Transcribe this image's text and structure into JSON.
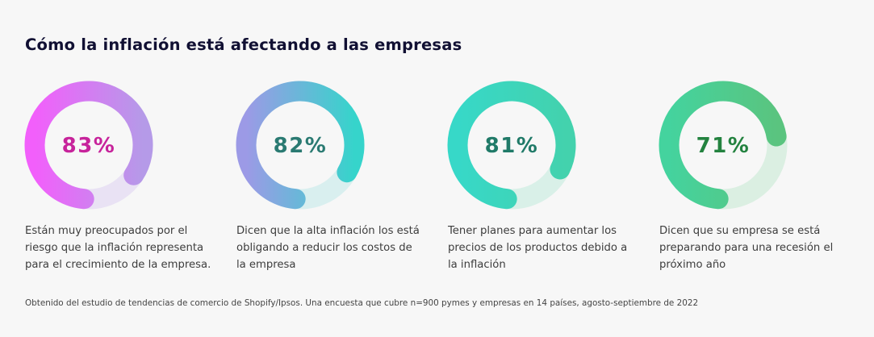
{
  "title": "Cómo la inflación está afectando a las empresas",
  "source": "Obtenido del estudio de tendencias de comercio de Shopify/Ipsos. Una encuesta que cubre n=900 pymes y empresas en 14 países, agosto-septiembre de 2022",
  "chart_data": [
    {
      "type": "donut",
      "value": 83,
      "label": "83%",
      "description": "Están muy preocupados por el riesgo que la inflación representa para el crecimiento de la empresa.",
      "colors": {
        "start": "#f25ffb",
        "end": "#b59ae8",
        "track": "#e9e2f4",
        "text": "#c7239b"
      }
    },
    {
      "type": "donut",
      "value": 82,
      "label": "82%",
      "description": "Dicen que la alta inflación los está obligando a reducir los costos de la empresa",
      "colors": {
        "start": "#9c9ae6",
        "end": "#36d4cb",
        "track": "#d9efef",
        "text": "#2a7a72"
      }
    },
    {
      "type": "donut",
      "value": 81,
      "label": "81%",
      "description": "Tener planes para aumentar los precios de los productos debido a la inflación",
      "colors": {
        "start": "#37d8c8",
        "end": "#43d2ad",
        "track": "#d9f0e8",
        "text": "#207a68"
      }
    },
    {
      "type": "donut",
      "value": 71,
      "label": "71%",
      "description": "Dicen que su empresa se está preparando para una recesión el próximo año",
      "colors": {
        "start": "#44d39e",
        "end": "#5ac47f",
        "track": "#dbefe2",
        "text": "#23823f"
      }
    }
  ]
}
